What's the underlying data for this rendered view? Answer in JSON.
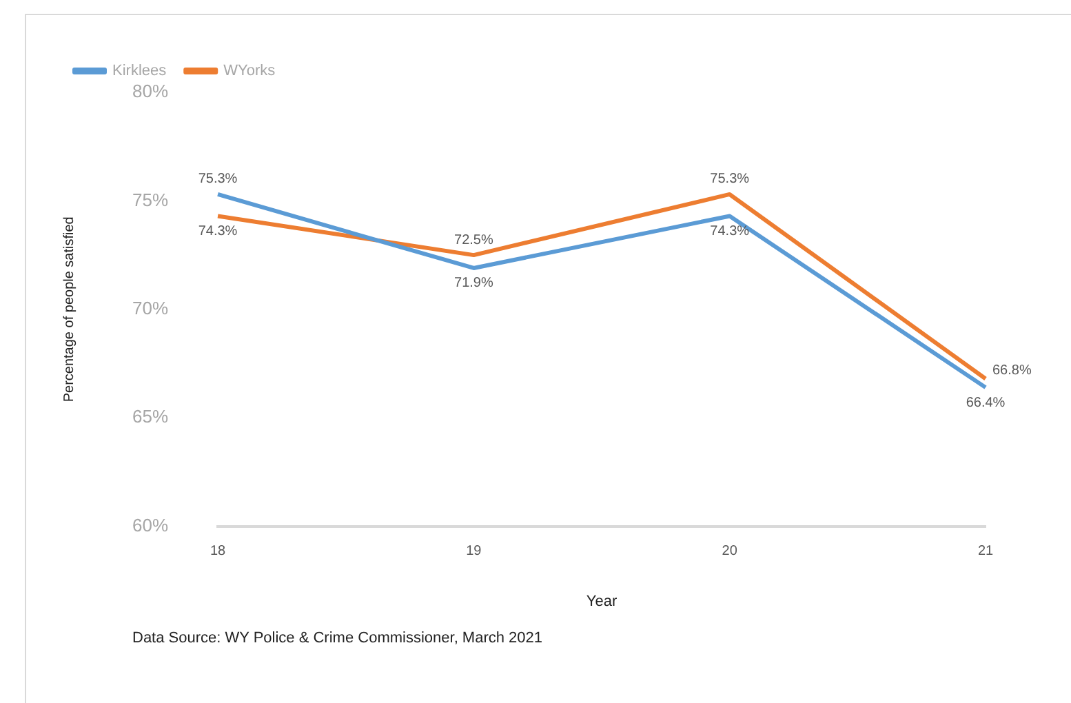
{
  "chart_data": {
    "type": "line",
    "xlabel": "Year",
    "ylabel": "Percentage of people satisfied",
    "categories": [
      "18",
      "19",
      "20",
      "21"
    ],
    "series": [
      {
        "name": "Kirklees",
        "color": "#5b9bd5",
        "values": [
          75.3,
          71.9,
          74.3,
          66.4
        ],
        "value_labels": [
          "75.3%",
          "71.9%",
          "74.3%",
          "66.4%"
        ]
      },
      {
        "name": "WYorks",
        "color": "#ed7d31",
        "values": [
          74.3,
          72.5,
          75.3,
          66.8
        ],
        "value_labels": [
          "74.3%",
          "72.5%",
          "75.3%",
          "66.8%"
        ]
      }
    ],
    "ylim": [
      60,
      80
    ],
    "yticks": [
      {
        "value": 60,
        "label": "60%"
      },
      {
        "value": 65,
        "label": "65%"
      },
      {
        "value": 70,
        "label": "70%"
      },
      {
        "value": 75,
        "label": "75%"
      },
      {
        "value": 80,
        "label": "80%"
      }
    ],
    "grid": false,
    "legend": "top left",
    "marker": "none",
    "line_style": "solid",
    "annotations": [
      "Data Source:  WY Police & Crime Commissioner, March 2021"
    ]
  }
}
